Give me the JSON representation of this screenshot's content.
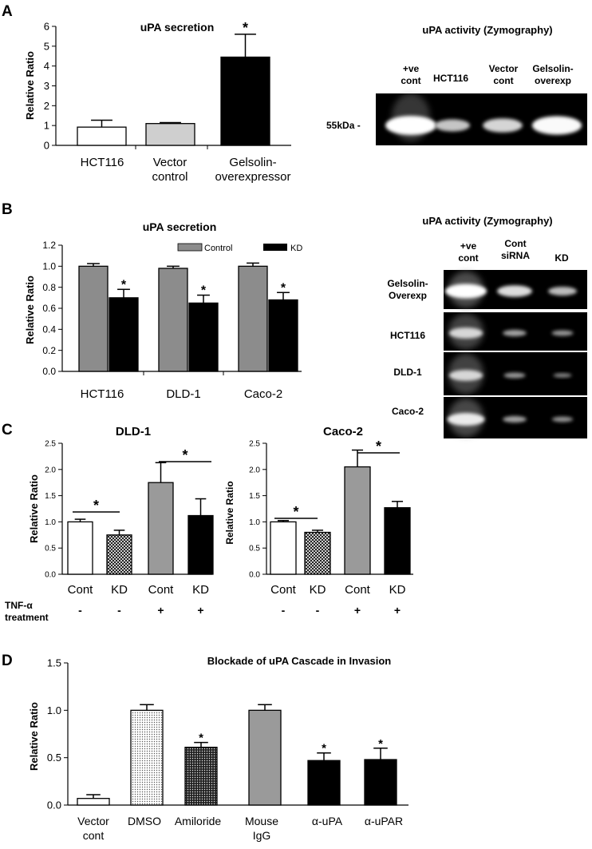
{
  "panel_labels": [
    "A",
    "B",
    "C",
    "D"
  ],
  "chart_data": [
    {
      "panel": "A",
      "type": "bar",
      "title": "uPA secretion",
      "ylabel": "Relative Ratio",
      "ylim": [
        0,
        6
      ],
      "yticks": [
        "0",
        "1",
        "2",
        "3",
        "4",
        "5",
        "6"
      ],
      "categories": [
        "HCT116",
        "Vector control",
        "Gelsolin-overexpressor"
      ],
      "values": [
        0.92,
        1.1,
        4.45
      ],
      "errors": [
        0.35,
        0.05,
        1.15
      ],
      "fills": [
        "white",
        "lightgray",
        "black"
      ],
      "stars": [
        "",
        "",
        "*"
      ]
    },
    {
      "panel": "B",
      "type": "bar",
      "title": "uPA secretion",
      "ylabel": "Relative Ratio",
      "ylim": [
        0,
        1.2
      ],
      "yticks": [
        "0.0",
        "0.2",
        "0.4",
        "0.6",
        "0.8",
        "1.0",
        "1.2"
      ],
      "categories": [
        "HCT116",
        "DLD-1",
        "Caco-2"
      ],
      "series": [
        {
          "name": "Control",
          "color": "#8c8c8c",
          "values": [
            1.0,
            0.98,
            1.0
          ],
          "errors": [
            0.025,
            0.02,
            0.03
          ],
          "stars": [
            "",
            "",
            ""
          ]
        },
        {
          "name": "KD",
          "color": "#000000",
          "values": [
            0.7,
            0.65,
            0.68
          ],
          "errors": [
            0.08,
            0.075,
            0.07
          ],
          "stars": [
            "*",
            "*",
            "*"
          ]
        }
      ],
      "legend": "top"
    },
    {
      "panel": "C",
      "type": "bar",
      "title": "DLD-1",
      "ylabel": "Relative Ratio",
      "ylim": [
        0,
        2.5
      ],
      "yticks": [
        "0.0",
        "0.5",
        "1.0",
        "1.5",
        "2.0",
        "2.5"
      ],
      "categories": [
        "Cont",
        "KD",
        "Cont",
        "KD"
      ],
      "values": [
        1.0,
        0.75,
        1.75,
        1.12
      ],
      "errors": [
        0.05,
        0.09,
        0.38,
        0.32
      ],
      "fills": [
        "white",
        "hatch",
        "gray",
        "black"
      ],
      "treatment_label": "TNF-α treatment",
      "treatment": [
        "-",
        "-",
        "+",
        "+"
      ],
      "stars": [
        "*",
        "*"
      ]
    },
    {
      "panel": "C",
      "type": "bar",
      "title": "Caco-2",
      "ylabel": "Relative Ratio",
      "ylim": [
        0,
        2.5
      ],
      "yticks": [
        "0.0",
        "0.5",
        "1.0",
        "1.5",
        "2.0",
        "2.5"
      ],
      "categories": [
        "Cont",
        "KD",
        "Cont",
        "KD"
      ],
      "values": [
        1.0,
        0.8,
        2.05,
        1.27
      ],
      "errors": [
        0.025,
        0.04,
        0.32,
        0.12
      ],
      "fills": [
        "white",
        "hatch",
        "gray",
        "black"
      ],
      "treatment": [
        "-",
        "-",
        "+",
        "+"
      ],
      "stars": [
        "*",
        "*"
      ]
    },
    {
      "panel": "D",
      "type": "bar",
      "title": "Blockade of uPA Cascade in Invasion",
      "ylabel": "Relative Ratio",
      "ylim": [
        0,
        1.5
      ],
      "yticks": [
        "0.0",
        "0.5",
        "1.0",
        "1.5"
      ],
      "categories": [
        "Vector cont",
        "DMSO",
        "Amiloride",
        "Mouse IgG",
        "α-uPA",
        "α-uPAR"
      ],
      "values": [
        0.07,
        1.0,
        0.61,
        1.0,
        0.47,
        0.48
      ],
      "errors": [
        0.04,
        0.06,
        0.05,
        0.06,
        0.08,
        0.12
      ],
      "fills": [
        "white",
        "dots-light",
        "dots-dark",
        "gray",
        "black",
        "black"
      ],
      "stars": [
        "",
        "",
        "*",
        "",
        "*",
        "*"
      ]
    }
  ],
  "zymography": {
    "A": {
      "title": "uPA activity (Zymography)",
      "lanes": [
        "+ve cont",
        "HCT116",
        "Vector cont",
        "Gelsolin-overexp"
      ],
      "marker": "55kDa -",
      "intensity": [
        1.0,
        0.45,
        0.6,
        0.95
      ]
    },
    "B": {
      "title": "uPA activity (Zymography)",
      "lanes": [
        "+ve cont",
        "Cont siRNA",
        "KD"
      ],
      "rows": [
        {
          "label": "Gelsolin-Overexp",
          "intensity": [
            1.0,
            0.75,
            0.5
          ]
        },
        {
          "label": "HCT116",
          "intensity": [
            0.7,
            0.3,
            0.22
          ]
        },
        {
          "label": "DLD-1",
          "intensity": [
            0.7,
            0.22,
            0.1
          ]
        },
        {
          "label": "Caco-2",
          "intensity": [
            0.85,
            0.3,
            0.2
          ]
        }
      ]
    }
  }
}
